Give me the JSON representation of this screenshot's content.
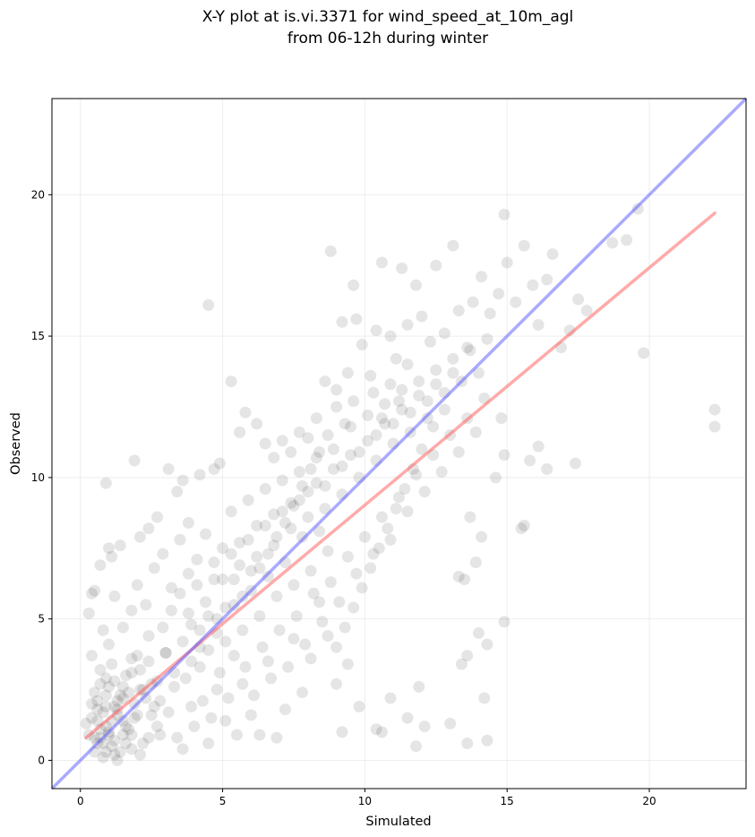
{
  "chart_data": {
    "type": "scatter",
    "title_lines": [
      "X-Y plot at is.vi.3371 for wind_speed_at_10m_agl",
      "from 06-12h during winter"
    ],
    "xlabel": "Simulated",
    "ylabel": "Observed",
    "xlim": [
      -1.0,
      23.4
    ],
    "ylim": [
      -1.0,
      23.4
    ],
    "xticks": [
      0,
      5,
      10,
      15,
      20
    ],
    "yticks": [
      0,
      5,
      10,
      15,
      20
    ],
    "grid": true,
    "colors": {
      "points": "#000000",
      "regression_line": "#ff5555",
      "identity_line": "#5555ff",
      "grid": "#dddddd",
      "axes": "#000000"
    },
    "identity_line": {
      "x": [
        -1.0,
        23.4
      ],
      "y": [
        -1.0,
        23.4
      ]
    },
    "regression_line": {
      "x": [
        0.2,
        22.3
      ],
      "y": [
        0.8,
        19.35
      ]
    },
    "points": [
      [
        0.5,
        0.3
      ],
      [
        0.7,
        0.8
      ],
      [
        0.9,
        1.2
      ],
      [
        1.1,
        0.5
      ],
      [
        1.3,
        1.8
      ],
      [
        0.6,
        2.1
      ],
      [
        1.0,
        2.6
      ],
      [
        0.8,
        0.1
      ],
      [
        1.2,
        0.2
      ],
      [
        1.5,
        0.9
      ],
      [
        0.4,
        1.5
      ],
      [
        1.7,
        1.1
      ],
      [
        0.9,
        2.9
      ],
      [
        1.4,
        2.3
      ],
      [
        0.3,
        0.9
      ],
      [
        1.8,
        0.4
      ],
      [
        2.0,
        1.6
      ],
      [
        0.7,
        3.2
      ],
      [
        1.6,
        3.0
      ],
      [
        2.2,
        2.5
      ],
      [
        0.5,
        2.4
      ],
      [
        1.0,
        1.0
      ],
      [
        1.2,
        0.7
      ],
      [
        0.8,
        1.7
      ],
      [
        1.9,
        2.0
      ],
      [
        0.6,
        0.6
      ],
      [
        1.1,
        3.4
      ],
      [
        2.4,
        0.8
      ],
      [
        0.9,
        0.3
      ],
      [
        1.3,
        0.0
      ],
      [
        0.2,
        1.3
      ],
      [
        1.5,
        1.4
      ],
      [
        2.6,
        1.9
      ],
      [
        0.7,
        2.7
      ],
      [
        1.8,
        3.6
      ],
      [
        1.0,
        4.1
      ],
      [
        0.4,
        3.7
      ],
      [
        2.1,
        0.2
      ],
      [
        1.6,
        0.6
      ],
      [
        0.8,
        4.6
      ],
      [
        0.3,
        5.2
      ],
      [
        0.4,
        5.9
      ],
      [
        0.5,
        6.0
      ],
      [
        0.7,
        6.9
      ],
      [
        0.9,
        9.8
      ],
      [
        1.0,
        7.5
      ],
      [
        1.1,
        7.2
      ],
      [
        1.4,
        7.6
      ],
      [
        1.9,
        10.6
      ],
      [
        2.1,
        7.9
      ],
      [
        2.4,
        8.2
      ],
      [
        2.7,
        8.6
      ],
      [
        3.1,
        10.3
      ],
      [
        3.4,
        9.5
      ],
      [
        3.6,
        9.9
      ],
      [
        3.8,
        8.4
      ],
      [
        4.2,
        10.1
      ],
      [
        4.5,
        16.1
      ],
      [
        4.7,
        10.3
      ],
      [
        4.9,
        10.5
      ],
      [
        5.3,
        13.4
      ],
      [
        5.6,
        11.6
      ],
      [
        5.8,
        12.3
      ],
      [
        6.2,
        11.9
      ],
      [
        6.5,
        11.2
      ],
      [
        6.8,
        10.7
      ],
      [
        7.1,
        11.3
      ],
      [
        7.4,
        10.9
      ],
      [
        7.7,
        11.6
      ],
      [
        8.0,
        11.4
      ],
      [
        8.3,
        12.1
      ],
      [
        8.6,
        13.4
      ],
      [
        8.8,
        18.0
      ],
      [
        9.0,
        13.1
      ],
      [
        9.2,
        15.5
      ],
      [
        9.4,
        13.7
      ],
      [
        9.6,
        16.8
      ],
      [
        9.7,
        15.6
      ],
      [
        9.9,
        14.7
      ],
      [
        10.2,
        13.6
      ],
      [
        10.4,
        15.2
      ],
      [
        10.6,
        17.6
      ],
      [
        10.9,
        15.0
      ],
      [
        11.1,
        14.2
      ],
      [
        11.3,
        17.4
      ],
      [
        11.5,
        15.4
      ],
      [
        11.8,
        16.8
      ],
      [
        12.0,
        15.7
      ],
      [
        12.3,
        14.8
      ],
      [
        12.5,
        17.5
      ],
      [
        12.8,
        15.1
      ],
      [
        13.1,
        18.2
      ],
      [
        13.3,
        15.9
      ],
      [
        13.6,
        14.6
      ],
      [
        13.8,
        16.2
      ],
      [
        14.1,
        17.1
      ],
      [
        14.4,
        15.8
      ],
      [
        14.7,
        16.5
      ],
      [
        14.9,
        19.3
      ],
      [
        15.0,
        17.6
      ],
      [
        15.3,
        16.2
      ],
      [
        15.6,
        18.2
      ],
      [
        15.9,
        16.8
      ],
      [
        16.1,
        15.4
      ],
      [
        16.4,
        17.0
      ],
      [
        16.6,
        17.9
      ],
      [
        16.9,
        14.6
      ],
      [
        17.2,
        15.2
      ],
      [
        17.5,
        16.3
      ],
      [
        17.8,
        15.9
      ],
      [
        18.7,
        18.3
      ],
      [
        19.2,
        18.4
      ],
      [
        19.6,
        19.5
      ],
      [
        19.8,
        14.4
      ],
      [
        22.3,
        12.4
      ],
      [
        22.3,
        11.8
      ],
      [
        17.4,
        10.5
      ],
      [
        16.4,
        10.3
      ],
      [
        16.1,
        11.1
      ],
      [
        15.6,
        8.3
      ],
      [
        15.5,
        8.2
      ],
      [
        15.8,
        10.6
      ],
      [
        14.8,
        12.1
      ],
      [
        14.9,
        10.8
      ],
      [
        14.6,
        10.0
      ],
      [
        14.1,
        7.9
      ],
      [
        13.9,
        7.0
      ],
      [
        13.7,
        8.6
      ],
      [
        13.5,
        6.4
      ],
      [
        13.4,
        3.4
      ],
      [
        13.3,
        6.5
      ],
      [
        13.6,
        3.7
      ],
      [
        14.0,
        4.5
      ],
      [
        14.3,
        4.1
      ],
      [
        14.9,
        4.9
      ],
      [
        14.2,
        2.2
      ],
      [
        14.3,
        0.7
      ],
      [
        13.6,
        0.6
      ],
      [
        13.0,
        1.3
      ],
      [
        12.1,
        1.2
      ],
      [
        11.8,
        0.5
      ],
      [
        11.5,
        1.5
      ],
      [
        11.9,
        2.6
      ],
      [
        10.9,
        2.2
      ],
      [
        10.4,
        1.1
      ],
      [
        10.6,
        1.0
      ],
      [
        9.8,
        1.9
      ],
      [
        9.2,
        1.0
      ],
      [
        9.0,
        2.7
      ],
      [
        9.4,
        3.4
      ],
      [
        8.7,
        4.4
      ],
      [
        8.4,
        5.6
      ],
      [
        8.1,
        3.6
      ],
      [
        7.8,
        2.4
      ],
      [
        7.5,
        4.3
      ],
      [
        7.2,
        1.8
      ],
      [
        6.9,
        0.8
      ],
      [
        6.6,
        3.5
      ],
      [
        6.3,
        0.9
      ],
      [
        6.0,
        1.6
      ],
      [
        5.7,
        2.7
      ],
      [
        5.4,
        3.7
      ],
      [
        5.1,
        1.4
      ],
      [
        4.8,
        2.5
      ],
      [
        4.5,
        0.6
      ],
      [
        4.2,
        3.3
      ],
      [
        3.9,
        1.9
      ],
      [
        3.6,
        0.4
      ],
      [
        3.3,
        2.6
      ],
      [
        3.0,
        3.8
      ],
      [
        2.7,
        1.2
      ],
      [
        2.4,
        4.4
      ],
      [
        2.1,
        3.2
      ],
      [
        1.8,
        5.3
      ],
      [
        1.5,
        4.7
      ],
      [
        1.2,
        5.8
      ],
      [
        2.0,
        6.2
      ],
      [
        2.3,
        5.5
      ],
      [
        2.6,
        6.8
      ],
      [
        2.9,
        7.3
      ],
      [
        3.2,
        6.1
      ],
      [
        3.5,
        7.8
      ],
      [
        3.8,
        6.6
      ],
      [
        4.1,
        7.1
      ],
      [
        4.4,
        8.0
      ],
      [
        4.7,
        6.4
      ],
      [
        5.0,
        7.5
      ],
      [
        5.3,
        8.8
      ],
      [
        5.6,
        7.7
      ],
      [
        5.9,
        9.2
      ],
      [
        6.2,
        8.3
      ],
      [
        6.5,
        9.6
      ],
      [
        6.8,
        8.7
      ],
      [
        7.1,
        9.9
      ],
      [
        7.4,
        9.1
      ],
      [
        7.7,
        10.2
      ],
      [
        8.0,
        9.5
      ],
      [
        8.3,
        10.7
      ],
      [
        8.6,
        9.7
      ],
      [
        8.9,
        11.0
      ],
      [
        9.2,
        10.4
      ],
      [
        9.5,
        11.8
      ],
      [
        9.8,
        10.9
      ],
      [
        10.1,
        12.2
      ],
      [
        10.4,
        11.5
      ],
      [
        10.7,
        12.6
      ],
      [
        11.0,
        11.9
      ],
      [
        11.3,
        13.1
      ],
      [
        11.6,
        12.3
      ],
      [
        11.9,
        13.4
      ],
      [
        12.2,
        12.7
      ],
      [
        12.5,
        13.8
      ],
      [
        12.8,
        13.0
      ],
      [
        13.1,
        14.2
      ],
      [
        13.4,
        13.4
      ],
      [
        13.7,
        14.5
      ],
      [
        14.0,
        13.7
      ],
      [
        14.3,
        14.9
      ],
      [
        12.4,
        11.8
      ],
      [
        12.0,
        11.0
      ],
      [
        11.7,
        10.3
      ],
      [
        11.4,
        9.6
      ],
      [
        11.1,
        8.9
      ],
      [
        10.8,
        8.2
      ],
      [
        10.5,
        7.5
      ],
      [
        10.2,
        6.8
      ],
      [
        9.9,
        6.1
      ],
      [
        9.6,
        5.4
      ],
      [
        9.3,
        4.7
      ],
      [
        9.0,
        4.0
      ],
      [
        8.7,
        7.4
      ],
      [
        8.4,
        8.1
      ],
      [
        8.1,
        6.7
      ],
      [
        7.8,
        7.9
      ],
      [
        7.5,
        6.2
      ],
      [
        7.2,
        7.0
      ],
      [
        6.9,
        5.8
      ],
      [
        6.6,
        6.5
      ],
      [
        6.3,
        5.1
      ],
      [
        6.0,
        6.0
      ],
      [
        5.7,
        4.6
      ],
      [
        5.4,
        5.5
      ],
      [
        5.1,
        4.2
      ],
      [
        4.8,
        5.0
      ],
      [
        4.5,
        3.9
      ],
      [
        4.2,
        4.6
      ],
      [
        3.9,
        3.5
      ],
      [
        3.6,
        4.2
      ],
      [
        3.3,
        3.1
      ],
      [
        3.0,
        3.8
      ],
      [
        2.7,
        2.8
      ],
      [
        2.4,
        3.5
      ],
      [
        2.1,
        2.5
      ],
      [
        1.8,
        3.1
      ],
      [
        1.5,
        2.2
      ],
      [
        1.2,
        2.8
      ],
      [
        0.9,
        1.9
      ],
      [
        0.6,
        1.4
      ],
      [
        1.3,
        1.6
      ],
      [
        1.7,
        2.4
      ],
      [
        2.5,
        1.6
      ],
      [
        2.8,
        0.9
      ],
      [
        3.1,
        1.7
      ],
      [
        3.4,
        0.8
      ],
      [
        3.7,
        2.9
      ],
      [
        4.0,
        1.2
      ],
      [
        4.3,
        2.1
      ],
      [
        4.6,
        1.5
      ],
      [
        4.9,
        3.1
      ],
      [
        5.2,
        2.2
      ],
      [
        5.5,
        0.9
      ],
      [
        5.8,
        3.3
      ],
      [
        6.1,
        2.3
      ],
      [
        6.4,
        4.0
      ],
      [
        6.7,
        2.9
      ],
      [
        7.0,
        4.6
      ],
      [
        7.3,
        3.3
      ],
      [
        7.6,
        5.1
      ],
      [
        7.9,
        4.1
      ],
      [
        8.2,
        5.9
      ],
      [
        8.5,
        4.9
      ],
      [
        8.8,
        6.3
      ],
      [
        9.1,
        5.6
      ],
      [
        9.4,
        7.2
      ],
      [
        9.7,
        6.6
      ],
      [
        10.0,
        7.9
      ],
      [
        10.3,
        7.3
      ],
      [
        10.6,
        8.6
      ],
      [
        10.9,
        7.8
      ],
      [
        11.2,
        9.3
      ],
      [
        11.5,
        8.8
      ],
      [
        11.8,
        10.1
      ],
      [
        12.1,
        9.5
      ],
      [
        12.4,
        10.8
      ],
      [
        12.7,
        10.2
      ],
      [
        13.0,
        11.5
      ],
      [
        13.3,
        10.9
      ],
      [
        13.6,
        12.1
      ],
      [
        13.9,
        11.6
      ],
      [
        14.2,
        12.8
      ],
      [
        1.0,
        0.9
      ],
      [
        1.1,
        1.4
      ],
      [
        0.8,
        0.6
      ],
      [
        1.3,
        2.1
      ],
      [
        0.7,
        1.1
      ],
      [
        1.4,
        0.3
      ],
      [
        0.9,
        2.3
      ],
      [
        1.2,
        1.9
      ],
      [
        0.6,
        1.8
      ],
      [
        1.5,
        2.6
      ],
      [
        1.6,
        1.2
      ],
      [
        0.5,
        0.8
      ],
      [
        1.9,
        1.5
      ],
      [
        2.2,
        0.6
      ],
      [
        2.3,
        2.2
      ],
      [
        0.4,
        2.0
      ],
      [
        1.8,
        0.9
      ],
      [
        2.5,
        2.7
      ],
      [
        2.8,
        2.1
      ],
      [
        2.0,
        3.7
      ],
      [
        2.9,
        4.7
      ],
      [
        3.2,
        5.3
      ],
      [
        3.5,
        5.9
      ],
      [
        3.8,
        5.2
      ],
      [
        4.1,
        6.2
      ],
      [
        4.4,
        5.6
      ],
      [
        4.7,
        7.0
      ],
      [
        5.0,
        6.4
      ],
      [
        5.3,
        7.3
      ],
      [
        5.6,
        6.9
      ],
      [
        5.9,
        7.8
      ],
      [
        6.2,
        7.2
      ],
      [
        6.5,
        8.3
      ],
      [
        6.8,
        7.6
      ],
      [
        7.1,
        8.8
      ],
      [
        7.4,
        8.2
      ],
      [
        7.7,
        9.2
      ],
      [
        8.0,
        8.6
      ],
      [
        8.3,
        9.8
      ],
      [
        8.6,
        8.9
      ],
      [
        8.9,
        10.3
      ],
      [
        9.2,
        9.4
      ],
      [
        9.5,
        10.8
      ],
      [
        9.8,
        10.0
      ],
      [
        10.1,
        11.3
      ],
      [
        10.4,
        10.6
      ],
      [
        10.7,
        11.9
      ],
      [
        11.0,
        11.2
      ],
      [
        11.3,
        12.4
      ],
      [
        11.6,
        11.6
      ],
      [
        11.9,
        12.9
      ],
      [
        12.2,
        12.1
      ],
      [
        12.5,
        13.3
      ],
      [
        12.8,
        12.4
      ],
      [
        13.1,
        13.7
      ],
      [
        10.9,
        13.3
      ],
      [
        11.2,
        12.7
      ],
      [
        10.6,
        12.1
      ],
      [
        10.3,
        13.0
      ],
      [
        11.5,
        14.0
      ],
      [
        9.6,
        12.7
      ],
      [
        9.3,
        11.9
      ],
      [
        9.0,
        12.5
      ],
      [
        8.7,
        11.5
      ],
      [
        8.4,
        10.9
      ],
      [
        8.1,
        10.3
      ],
      [
        7.8,
        9.7
      ],
      [
        7.5,
        9.0
      ],
      [
        7.2,
        8.4
      ],
      [
        6.9,
        7.9
      ],
      [
        6.6,
        7.3
      ],
      [
        6.3,
        6.8
      ],
      [
        6.0,
        6.7
      ],
      [
        5.7,
        5.8
      ],
      [
        5.4,
        6.4
      ],
      [
        5.1,
        5.4
      ],
      [
        4.8,
        4.5
      ],
      [
        4.5,
        5.1
      ],
      [
        4.2,
        4.0
      ],
      [
        3.9,
        4.8
      ]
    ]
  }
}
